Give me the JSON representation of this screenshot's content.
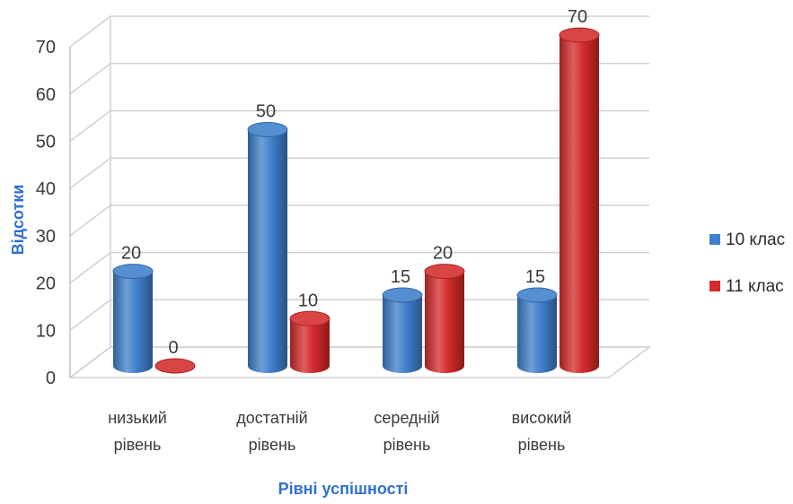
{
  "chart_data": {
    "type": "bar",
    "title": "",
    "xlabel": "Рівні успішності",
    "ylabel": "Відсотки",
    "ylim": [
      0,
      70
    ],
    "yticks": [
      "0",
      "10",
      "20",
      "30",
      "40",
      "50",
      "60",
      "70"
    ],
    "grid": true,
    "legend_position": "right",
    "categories": [
      [
        "низький",
        "рівень"
      ],
      [
        "достатній",
        "рівень"
      ],
      [
        "середній",
        "рівень"
      ],
      [
        "високий",
        "рівень"
      ]
    ],
    "series": [
      {
        "name": "10 клас",
        "color": "#3f7fcc",
        "values": [
          20,
          50,
          15,
          15
        ],
        "labels": [
          "20",
          "50",
          "15",
          "15"
        ]
      },
      {
        "name": "11 клас",
        "color": "#d42a2a",
        "values": [
          0,
          10,
          20,
          70
        ],
        "labels": [
          "0",
          "10",
          "20",
          "70"
        ]
      }
    ]
  }
}
